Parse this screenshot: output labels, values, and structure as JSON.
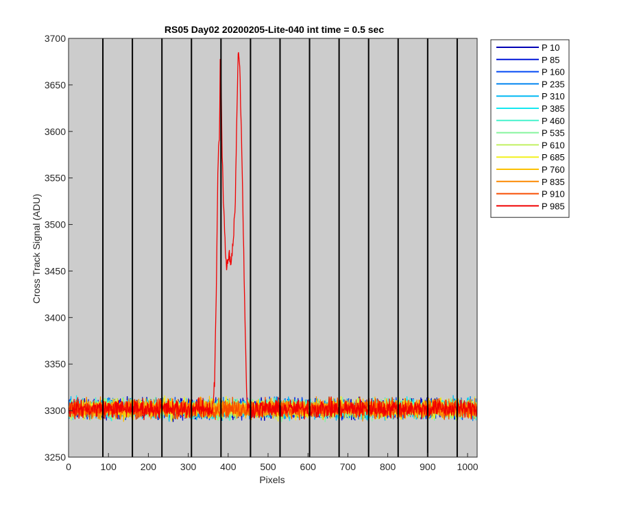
{
  "chart_data": {
    "type": "line",
    "title": "RS05 Day02 20200205-Lite-040 int time = 0.5 sec",
    "xlabel": "Pixels",
    "ylabel": "Cross Track Signal (ADU)",
    "xlim": [
      0,
      1024
    ],
    "ylim": [
      3250,
      3700
    ],
    "xticks": [
      0,
      100,
      200,
      300,
      400,
      500,
      600,
      700,
      800,
      900,
      1000
    ],
    "yticks": [
      3250,
      3300,
      3350,
      3400,
      3450,
      3500,
      3550,
      3600,
      3650,
      3700
    ],
    "background": "#cccccc",
    "grid": false,
    "vertical_lines_x": [
      86,
      160,
      234,
      308,
      382,
      456,
      530,
      604,
      678,
      752,
      826,
      900,
      974
    ],
    "legend_location": "outside-top-right",
    "baseline": 3302,
    "noise_amplitude": 10,
    "series": [
      {
        "name": "P 10",
        "color": "#0000b4"
      },
      {
        "name": "P 85",
        "color": "#0016d8"
      },
      {
        "name": "P 160",
        "color": "#0048f4"
      },
      {
        "name": "P 235",
        "color": "#0084f0"
      },
      {
        "name": "P 310",
        "color": "#00b8f4"
      },
      {
        "name": "P 385",
        "color": "#14e8f0"
      },
      {
        "name": "P 460",
        "color": "#44f2cc"
      },
      {
        "name": "P 535",
        "color": "#84f49c"
      },
      {
        "name": "P 610",
        "color": "#c0f060"
      },
      {
        "name": "P 685",
        "color": "#f2f01c"
      },
      {
        "name": "P 760",
        "color": "#fcc000"
      },
      {
        "name": "P 835",
        "color": "#fc8800"
      },
      {
        "name": "P 910",
        "color": "#f84c00"
      },
      {
        "name": "P 985",
        "color": "#f00000",
        "peak_profile": [
          [
            360,
            3302
          ],
          [
            366,
            3330
          ],
          [
            370,
            3420
          ],
          [
            374,
            3555
          ],
          [
            378,
            3600
          ],
          [
            380,
            3672
          ],
          [
            382,
            3655
          ],
          [
            385,
            3575
          ],
          [
            388,
            3530
          ],
          [
            391,
            3495
          ],
          [
            394,
            3460
          ],
          [
            397,
            3455
          ],
          [
            400,
            3462
          ],
          [
            403,
            3470
          ],
          [
            406,
            3460
          ],
          [
            410,
            3470
          ],
          [
            414,
            3490
          ],
          [
            418,
            3530
          ],
          [
            422,
            3620
          ],
          [
            425,
            3685
          ],
          [
            428,
            3682
          ],
          [
            430,
            3650
          ],
          [
            433,
            3600
          ],
          [
            436,
            3540
          ],
          [
            439,
            3470
          ],
          [
            442,
            3400
          ],
          [
            445,
            3340
          ],
          [
            448,
            3302
          ]
        ]
      }
    ]
  }
}
